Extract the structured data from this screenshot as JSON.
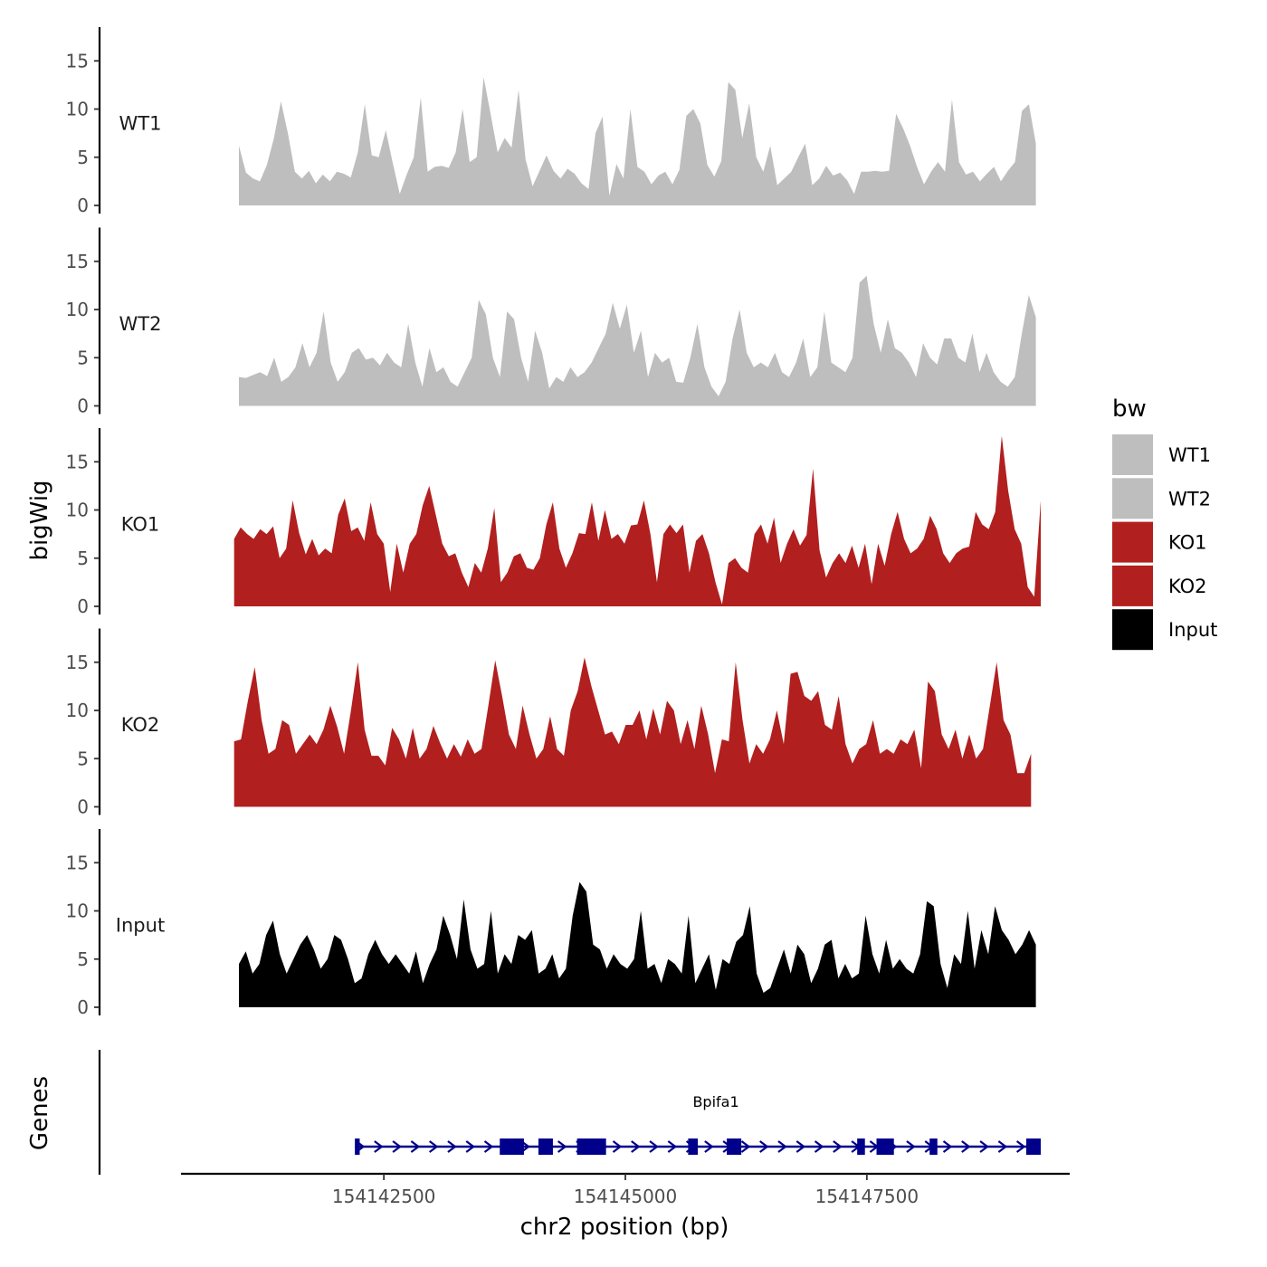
{
  "chart_data": {
    "type": "area",
    "ylabel": "bigWig",
    "genes_label": "Genes",
    "xlabel": "chr2 position (bp)",
    "x_range": [
      154140400,
      154149600
    ],
    "x_ticks": [
      154142500,
      154145000,
      154147500
    ],
    "x_tick_labels": [
      "154142500",
      "154145000",
      "154147500"
    ],
    "y_range": [
      0,
      18.5
    ],
    "y_ticks": [
      0,
      5,
      10,
      15
    ],
    "y_tick_labels": [
      "0",
      "5",
      "10",
      "15"
    ],
    "legend": {
      "title": "bw",
      "entries": [
        {
          "label": "WT1",
          "color": "#bebebe"
        },
        {
          "label": "WT2",
          "color": "#bebebe"
        },
        {
          "label": "KO1",
          "color": "#b21f1f"
        },
        {
          "label": "KO2",
          "color": "#b21f1f"
        },
        {
          "label": "Input",
          "color": "#000000"
        }
      ]
    },
    "series": [
      {
        "name": "WT1",
        "color": "#bebebe",
        "x_start": 154141000,
        "x_end": 154149250,
        "values": [
          6.2,
          3.4,
          2.8,
          2.5,
          4.2,
          7.0,
          10.8,
          7.5,
          3.5,
          2.8,
          3.6,
          2.3,
          3.2,
          2.5,
          3.5,
          3.3,
          2.9,
          5.5,
          10.5,
          5.2,
          5.0,
          7.8,
          4.4,
          1.2,
          3.2,
          5.0,
          11.2,
          3.5,
          4.0,
          4.1,
          3.9,
          5.5,
          10.0,
          4.5,
          5.0,
          13.3,
          9.5,
          5.5,
          7.0,
          6.0,
          12.0,
          4.8,
          2.0,
          3.6,
          5.2,
          3.6,
          2.8,
          3.8,
          3.3,
          2.3,
          1.7,
          7.5,
          9.2,
          1.0,
          4.3,
          2.8,
          10.0,
          4.0,
          3.5,
          2.2,
          3.1,
          3.5,
          2.2,
          3.7,
          9.3,
          10.0,
          8.5,
          4.2,
          3.0,
          4.6,
          12.8,
          12.0,
          7.0,
          10.6,
          5.0,
          3.5,
          6.2,
          2.1,
          2.8,
          3.5,
          5.0,
          6.4,
          2.1,
          2.8,
          4.1,
          3.1,
          3.4,
          2.6,
          1.2,
          3.5,
          3.5,
          3.6,
          3.5,
          3.6,
          9.5,
          8.0,
          6.2,
          4.0,
          2.2,
          3.5,
          4.5,
          3.5,
          11.0,
          4.5,
          3.2,
          3.5,
          2.5,
          3.3,
          4.0,
          2.5,
          3.6,
          4.5,
          9.8,
          10.5,
          6.4
        ],
        "label": "WT1"
      },
      {
        "name": "WT2",
        "color": "#bebebe",
        "x_start": 154141000,
        "x_end": 154149250,
        "values": [
          3.0,
          2.9,
          3.2,
          3.5,
          3.1,
          5.0,
          2.5,
          3.0,
          4.0,
          6.5,
          4.0,
          5.5,
          9.8,
          4.5,
          2.5,
          3.5,
          5.5,
          6.0,
          4.8,
          5.0,
          4.2,
          5.5,
          4.5,
          4.0,
          8.5,
          4.5,
          2.0,
          6.0,
          3.5,
          4.0,
          2.5,
          2.0,
          3.5,
          5.0,
          11.0,
          9.5,
          5.0,
          3.0,
          9.8,
          9.0,
          5.0,
          2.5,
          7.8,
          5.5,
          1.8,
          3.0,
          2.5,
          4.0,
          3.0,
          3.5,
          4.5,
          6.0,
          7.5,
          10.7,
          8.0,
          10.5,
          5.5,
          7.8,
          3.0,
          5.5,
          4.5,
          5.0,
          2.5,
          2.4,
          5.0,
          8.5,
          4.0,
          2.0,
          1.0,
          2.5,
          7.0,
          10.0,
          5.5,
          4.0,
          4.5,
          4.0,
          5.5,
          3.5,
          3.0,
          4.5,
          7.0,
          3.0,
          4.0,
          9.8,
          4.5,
          4.0,
          3.5,
          5.0,
          12.8,
          13.5,
          8.5,
          5.5,
          9.0,
          6.0,
          5.5,
          4.5,
          3.0,
          6.5,
          5.0,
          4.3,
          7.0,
          7.0,
          5.0,
          4.5,
          7.5,
          3.5,
          5.5,
          3.5,
          2.5,
          2.0,
          3.0,
          7.5,
          11.5,
          9.2
        ],
        "label": "WT2"
      },
      {
        "name": "KO1",
        "color": "#b21f1f",
        "x_start": 154140950,
        "x_end": 154149300,
        "values": [
          7.0,
          8.2,
          7.5,
          7.0,
          8.0,
          7.5,
          8.3,
          5.0,
          6.0,
          11.0,
          7.6,
          5.4,
          7.0,
          5.3,
          6.0,
          5.5,
          9.5,
          11.2,
          7.8,
          8.2,
          6.8,
          10.8,
          7.5,
          6.5,
          1.5,
          6.5,
          3.5,
          6.5,
          7.5,
          10.5,
          12.5,
          9.5,
          6.5,
          5.2,
          5.5,
          3.5,
          2.0,
          4.5,
          3.5,
          6.0,
          10.2,
          2.5,
          3.5,
          5.2,
          5.5,
          4.0,
          3.8,
          5.0,
          8.5,
          10.8,
          6.0,
          4.0,
          5.5,
          7.6,
          7.5,
          10.8,
          6.8,
          10.0,
          7.0,
          7.5,
          6.5,
          8.4,
          8.5,
          11.0,
          7.5,
          2.5,
          7.5,
          8.5,
          7.6,
          8.5,
          3.5,
          6.8,
          7.5,
          5.5,
          2.5,
          0.2,
          4.5,
          5.0,
          4.0,
          3.5,
          7.5,
          8.5,
          6.5,
          9.2,
          4.5,
          6.5,
          8.0,
          6.3,
          7.4,
          14.3,
          5.8,
          3.0,
          4.5,
          5.5,
          4.5,
          6.3,
          4.0,
          6.5,
          2.3,
          6.5,
          4.2,
          7.5,
          9.8,
          7.0,
          5.5,
          6.0,
          7.0,
          9.4,
          8.0,
          5.5,
          4.5,
          5.5,
          6.0,
          6.2,
          9.8,
          8.5,
          8.0,
          9.8,
          17.7,
          12.0,
          8.0,
          6.5,
          2.0,
          1.0,
          11.0
        ],
        "label": "KO1"
      },
      {
        "name": "KO2",
        "color": "#b21f1f",
        "x_start": 154140950,
        "x_end": 154149200,
        "values": [
          6.8,
          7.0,
          11.0,
          14.5,
          9.0,
          5.5,
          6.0,
          9.0,
          8.5,
          5.5,
          6.5,
          7.5,
          6.5,
          8.0,
          10.5,
          8.3,
          5.5,
          10.0,
          15.0,
          8.0,
          5.3,
          5.3,
          4.3,
          8.2,
          7.0,
          5.0,
          8.2,
          5.0,
          6.0,
          8.4,
          6.6,
          5.0,
          6.5,
          5.2,
          7.0,
          5.5,
          6.0,
          10.5,
          15.2,
          11.5,
          7.5,
          6.0,
          10.5,
          7.5,
          5.0,
          6.0,
          9.4,
          6.0,
          5.3,
          10.0,
          12.0,
          15.5,
          12.5,
          10.0,
          7.5,
          7.8,
          6.5,
          8.5,
          8.5,
          10.0,
          7.0,
          10.2,
          7.5,
          11.0,
          10.0,
          6.5,
          9.0,
          6.0,
          10.5,
          7.5,
          3.5,
          7.0,
          6.8,
          15.0,
          9.0,
          4.5,
          6.5,
          5.5,
          7.0,
          10.0,
          6.5,
          13.8,
          14.0,
          11.5,
          11.0,
          12.0,
          8.5,
          8.0,
          11.5,
          6.5,
          4.5,
          6.0,
          6.5,
          9.0,
          5.5,
          6.0,
          5.5,
          7.0,
          6.5,
          8.0,
          4.0,
          13.0,
          12.0,
          7.5,
          6.0,
          8.0,
          5.0,
          7.5,
          5.0,
          6.0,
          10.5,
          15.0,
          9.0,
          7.5,
          3.5,
          3.5,
          5.5
        ],
        "label": "KO2"
      },
      {
        "name": "Input",
        "color": "#000000",
        "x_start": 154141000,
        "x_end": 154149250,
        "values": [
          4.5,
          5.8,
          3.5,
          4.5,
          7.5,
          9.0,
          5.5,
          3.5,
          5.0,
          6.5,
          7.5,
          6.0,
          4.0,
          5.0,
          7.5,
          7.0,
          5.0,
          2.5,
          3.0,
          5.5,
          7.0,
          5.5,
          4.5,
          5.5,
          4.5,
          3.5,
          5.8,
          2.5,
          4.5,
          6.0,
          9.5,
          7.5,
          5.0,
          11.2,
          6.0,
          4.0,
          4.5,
          10.0,
          3.5,
          5.5,
          4.5,
          7.5,
          7.0,
          8.0,
          3.5,
          4.0,
          5.5,
          3.0,
          4.0,
          9.5,
          13.0,
          12.0,
          6.5,
          6.0,
          4.0,
          5.5,
          4.5,
          4.0,
          5.0,
          10.0,
          4.0,
          4.5,
          2.5,
          5.0,
          4.5,
          3.5,
          9.5,
          2.5,
          4.0,
          5.5,
          1.8,
          5.0,
          4.5,
          6.8,
          7.5,
          10.5,
          3.5,
          1.5,
          2.0,
          4.0,
          6.0,
          3.5,
          6.5,
          5.5,
          2.5,
          4.0,
          6.5,
          7.0,
          3.0,
          4.5,
          3.0,
          3.5,
          9.5,
          5.5,
          3.5,
          7.0,
          4.0,
          5.0,
          4.0,
          3.5,
          5.5,
          11.0,
          10.5,
          4.5,
          2.0,
          5.5,
          4.5,
          10.0,
          4.0,
          8.0,
          5.5,
          10.5,
          8.0,
          7.0,
          5.5,
          6.5,
          8.0,
          6.5
        ],
        "label": "Input"
      }
    ],
    "gene": {
      "name": "Bpifa1",
      "color": "#00008b",
      "strand": "+",
      "start": 154142200,
      "end": 154149300,
      "exons": [
        [
          154142200,
          154142250
        ],
        [
          154143700,
          154143950
        ],
        [
          154144100,
          154144250
        ],
        [
          154144500,
          154144800
        ],
        [
          154145650,
          154145750
        ],
        [
          154146050,
          154146200
        ],
        [
          154147400,
          154147480
        ],
        [
          154147600,
          154147780
        ],
        [
          154148150,
          154148230
        ],
        [
          154149150,
          154149300
        ]
      ]
    }
  }
}
